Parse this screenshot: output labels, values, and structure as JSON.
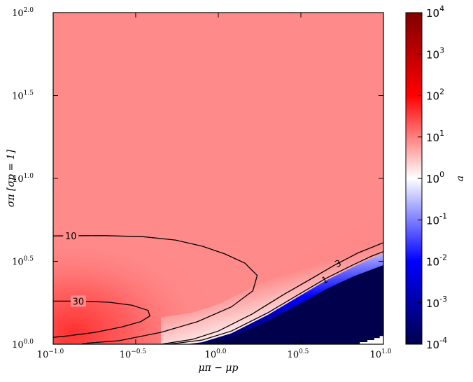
{
  "chart_data": {
    "type": "heatmap",
    "title": "",
    "xlabel": "μπ − μp",
    "ylabel": "σπ [σp = 1]",
    "xscale": "log",
    "yscale": "log",
    "xlim": [
      0.1,
      10
    ],
    "ylim": [
      1,
      100
    ],
    "x_ticks": [
      {
        "value": 0.1,
        "label": "10",
        "exp": "−1.0"
      },
      {
        "value": 0.316,
        "label": "10",
        "exp": "−0.5"
      },
      {
        "value": 1,
        "label": "10",
        "exp": "0.0"
      },
      {
        "value": 3.162,
        "label": "10",
        "exp": "0.5"
      },
      {
        "value": 10,
        "label": "10",
        "exp": "1.0"
      }
    ],
    "y_ticks": [
      {
        "value": 1,
        "label": "10",
        "exp": "0.0"
      },
      {
        "value": 3.162,
        "label": "10",
        "exp": "0.5"
      },
      {
        "value": 10,
        "label": "10",
        "exp": "1.0"
      },
      {
        "value": 31.62,
        "label": "10",
        "exp": "1.5"
      },
      {
        "value": 100,
        "label": "10",
        "exp": "2.0"
      }
    ],
    "colorbar": {
      "label": "a",
      "scale": "log",
      "range": [
        0.0001,
        10000
      ],
      "colormap": "seismic",
      "ticks": [
        {
          "value": 10000,
          "label": "10",
          "exp": "4"
        },
        {
          "value": 1000,
          "label": "10",
          "exp": "3"
        },
        {
          "value": 100,
          "label": "10",
          "exp": "2"
        },
        {
          "value": 10,
          "label": "10",
          "exp": "1"
        },
        {
          "value": 1,
          "label": "10",
          "exp": "0"
        },
        {
          "value": 0.1,
          "label": "10",
          "exp": "-1"
        },
        {
          "value": 0.01,
          "label": "10",
          "exp": "-2"
        },
        {
          "value": 0.001,
          "label": "10",
          "exp": "-3"
        },
        {
          "value": 0.0001,
          "label": "10",
          "exp": "-4"
        }
      ]
    },
    "contours": [
      {
        "level": 10,
        "label": "10",
        "points": [
          [
            0.1,
            4.5
          ],
          [
            0.2,
            4.52
          ],
          [
            0.35,
            4.45
          ],
          [
            0.55,
            4.25
          ],
          [
            0.8,
            3.9
          ],
          [
            1.1,
            3.5
          ],
          [
            1.45,
            3.08
          ],
          [
            1.72,
            2.6
          ],
          [
            1.62,
            2.1
          ],
          [
            1.2,
            1.68
          ],
          [
            0.75,
            1.37
          ],
          [
            0.45,
            1.18
          ],
          [
            0.25,
            1.05
          ],
          [
            0.15,
            1.01
          ]
        ]
      },
      {
        "level": 30,
        "label": "30",
        "points": [
          [
            0.1,
            1.82
          ],
          [
            0.15,
            1.82
          ],
          [
            0.22,
            1.79
          ],
          [
            0.3,
            1.72
          ],
          [
            0.375,
            1.6
          ],
          [
            0.385,
            1.48
          ],
          [
            0.34,
            1.37
          ],
          [
            0.26,
            1.27
          ],
          [
            0.18,
            1.18
          ],
          [
            0.12,
            1.12
          ],
          [
            0.1,
            1.1
          ]
        ]
      },
      {
        "level": 3,
        "label": "3",
        "points": [
          [
            0.45,
            1.0
          ],
          [
            0.7,
            1.07
          ],
          [
            1.0,
            1.2
          ],
          [
            1.6,
            1.52
          ],
          [
            2.5,
            2.0
          ],
          [
            3.5,
            2.42
          ],
          [
            5.0,
            2.98
          ],
          [
            7.0,
            3.55
          ],
          [
            10,
            4.1
          ]
        ]
      },
      {
        "level": 1,
        "label": "1",
        "points": [
          [
            0.5,
            1.0
          ],
          [
            0.8,
            1.06
          ],
          [
            1.2,
            1.2
          ],
          [
            2.0,
            1.55
          ],
          [
            3.0,
            1.97
          ],
          [
            4.5,
            2.5
          ],
          [
            6.5,
            3.0
          ],
          [
            8.5,
            3.4
          ],
          [
            10,
            3.62
          ]
        ]
      }
    ]
  }
}
